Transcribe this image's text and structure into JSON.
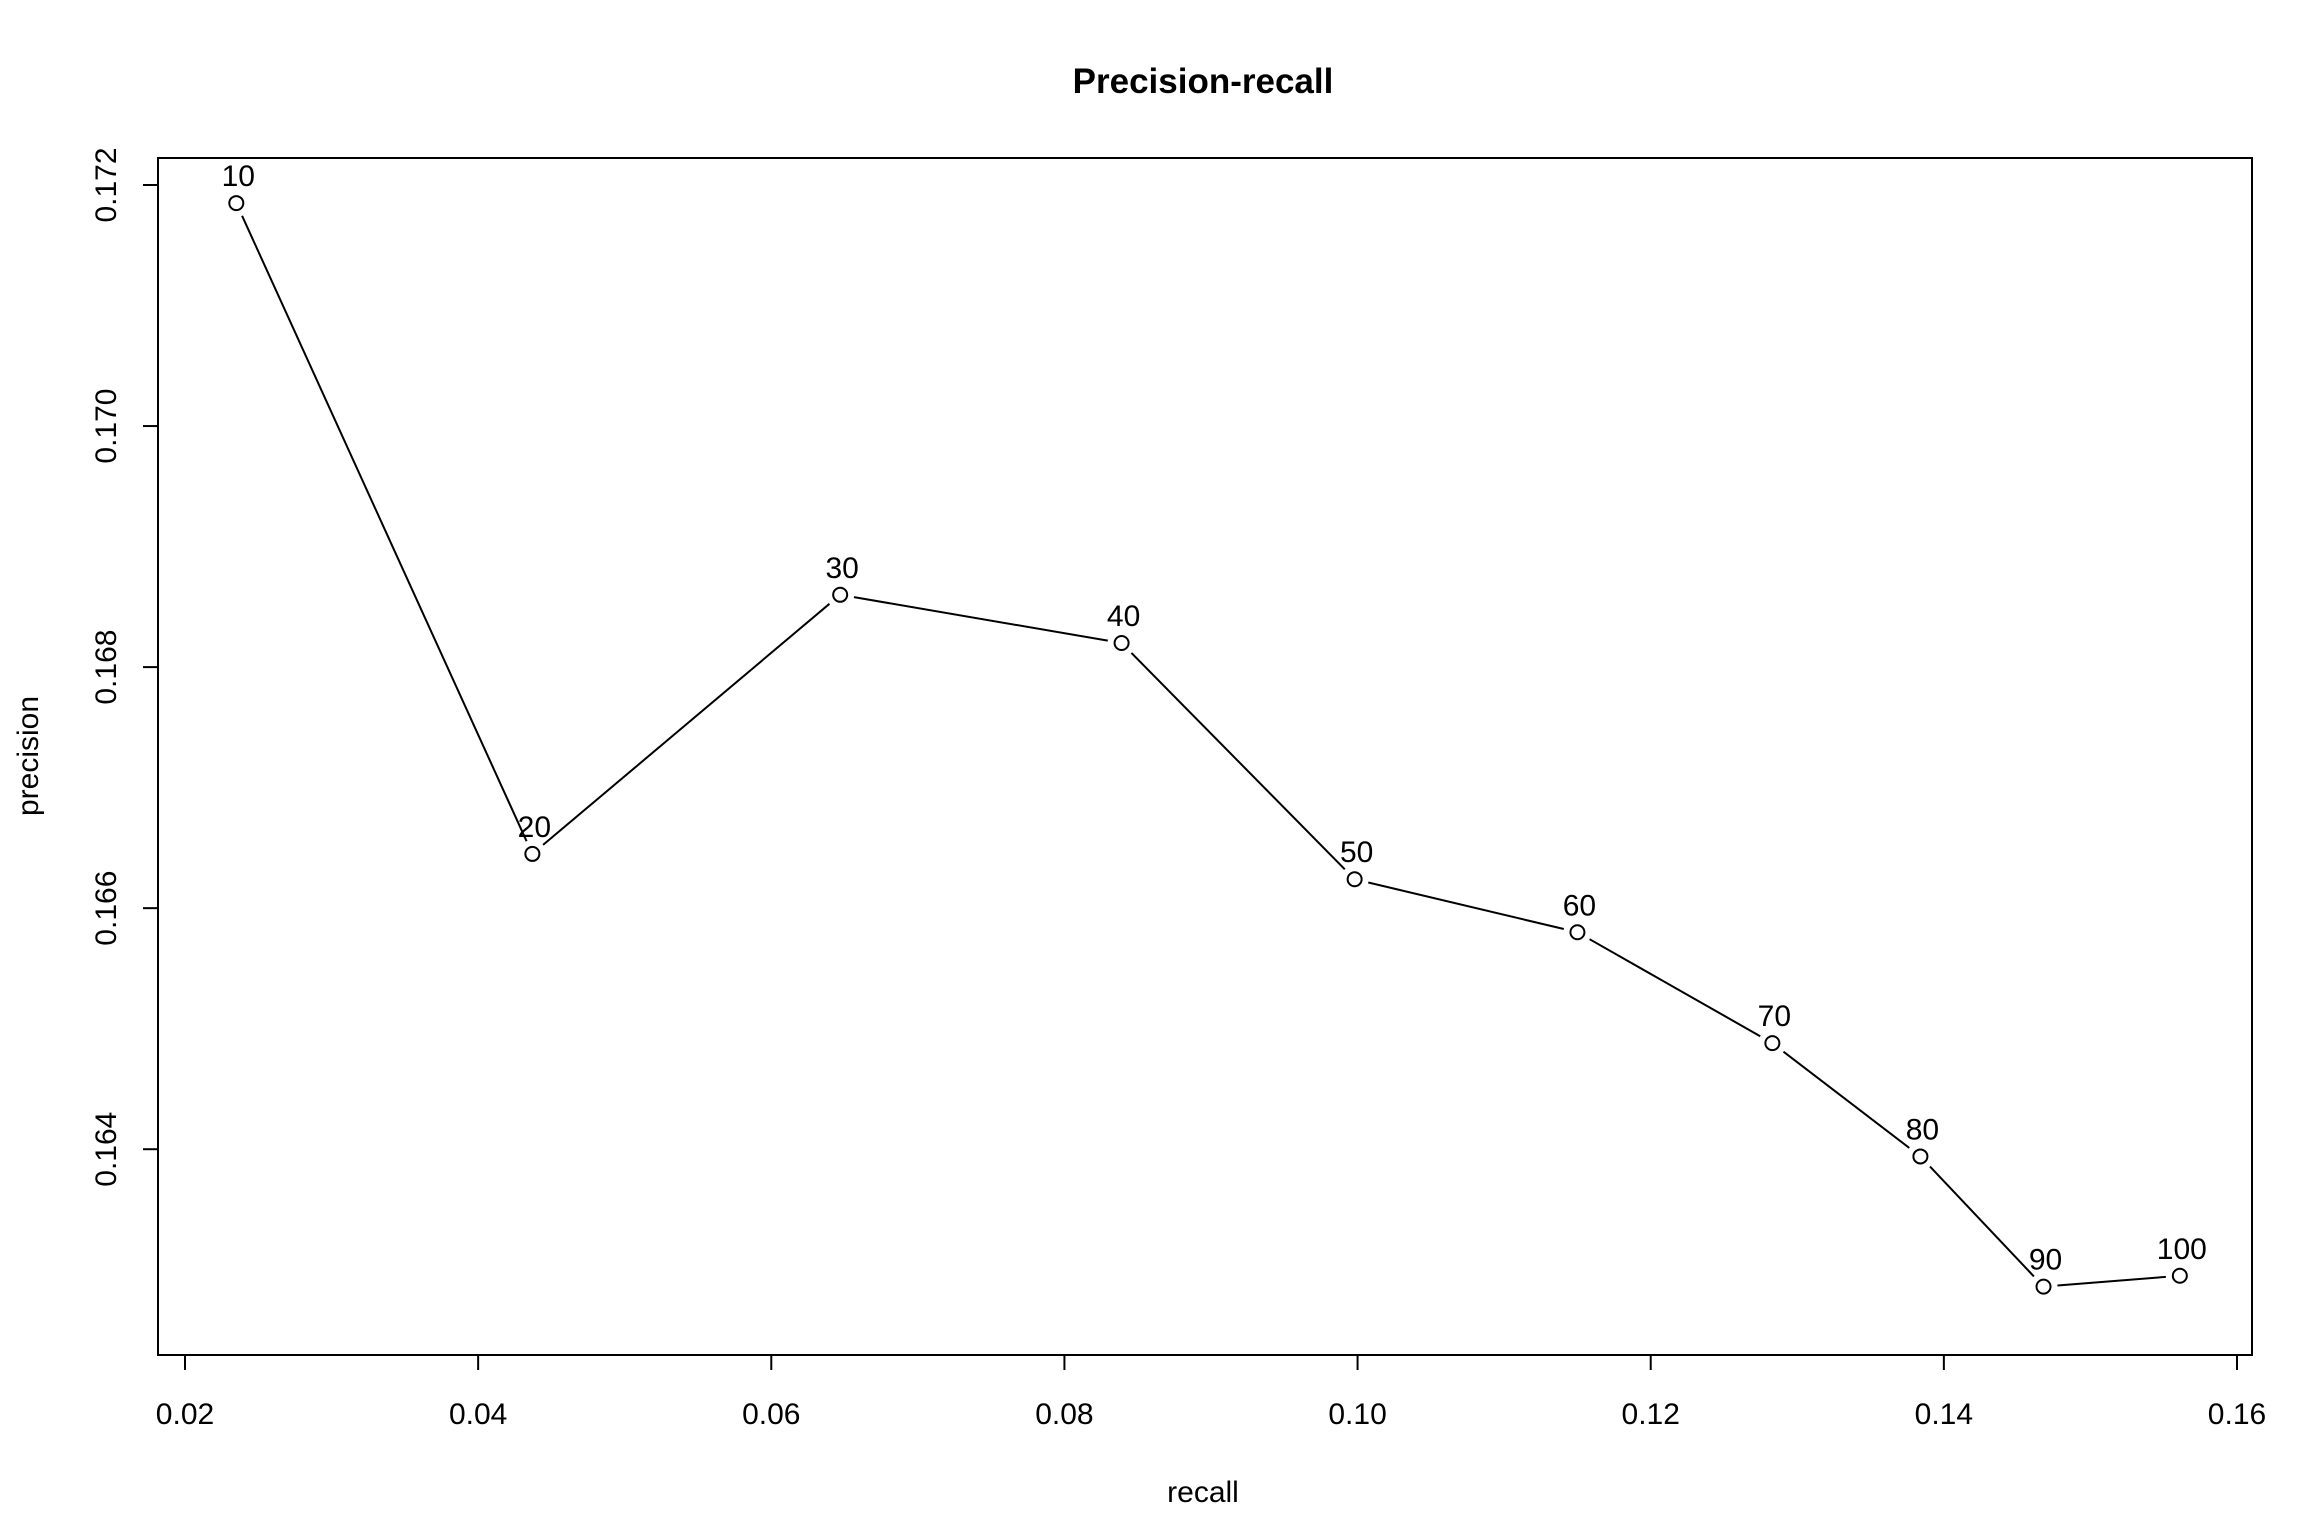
{
  "chart_data": {
    "type": "line",
    "title": "Precision-recall",
    "xlabel": "recall",
    "ylabel": "precision",
    "xlim": [
      0.02,
      0.16
    ],
    "ylim": [
      0.1625,
      0.172
    ],
    "x_ticks": [
      "0.02",
      "0.04",
      "0.06",
      "0.08",
      "0.10",
      "0.12",
      "0.14",
      "0.16"
    ],
    "y_ticks": [
      "0.164",
      "0.166",
      "0.168",
      "0.170",
      "0.172"
    ],
    "x_tick_values": [
      0.02,
      0.04,
      0.06,
      0.08,
      0.1,
      0.12,
      0.14,
      0.16
    ],
    "y_tick_values": [
      0.164,
      0.166,
      0.168,
      0.17,
      0.172
    ],
    "grid": false,
    "series": [
      {
        "x": [
          0.0235,
          0.0437,
          0.0647,
          0.0839,
          0.0998,
          0.115,
          0.1283,
          0.1384,
          0.1468,
          0.1561
        ],
        "y": [
          0.17185,
          0.16645,
          0.1686,
          0.1682,
          0.16624,
          0.1658,
          0.16488,
          0.16394,
          0.16286,
          0.16295
        ],
        "labels": [
          "10",
          "20",
          "30",
          "40",
          "50",
          "60",
          "70",
          "80",
          "90",
          "100"
        ]
      }
    ]
  }
}
